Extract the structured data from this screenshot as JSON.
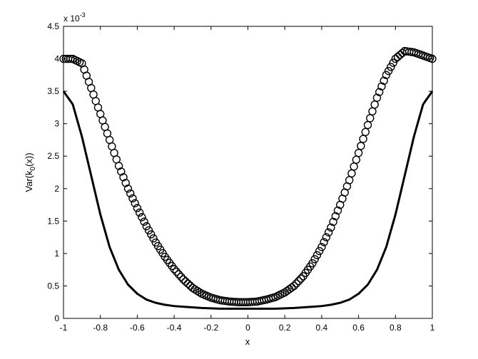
{
  "chart_data": {
    "type": "line",
    "title": "",
    "xlabel": "x",
    "ylabel": "Var(k_0(x))",
    "ylabel_main": "Var(k",
    "ylabel_sub": "0",
    "ylabel_tail": "(x))",
    "y_multiplier_label": "x 10",
    "y_multiplier_exponent": "-3",
    "xlim": [
      -1,
      1
    ],
    "ylim": [
      0,
      4.5
    ],
    "x_ticks": [
      "-1",
      "-0.8",
      "-0.6",
      "-0.4",
      "-0.2",
      "0",
      "0.2",
      "0.4",
      "0.6",
      "0.8",
      "1"
    ],
    "y_ticks": [
      "0",
      "0.5",
      "1",
      "1.5",
      "2",
      "2.5",
      "3",
      "3.5",
      "4",
      "4.5"
    ],
    "grid": false,
    "series": [
      {
        "marker": "circle",
        "color": "#000000",
        "x": [
          -1.0,
          -0.95,
          -0.9,
          -0.85,
          -0.8,
          -0.75,
          -0.7,
          -0.65,
          -0.6,
          -0.55,
          -0.5,
          -0.45,
          -0.4,
          -0.35,
          -0.3,
          -0.25,
          -0.2,
          -0.15,
          -0.1,
          -0.05,
          0.0,
          0.05,
          0.1,
          0.15,
          0.2,
          0.25,
          0.3,
          0.35,
          0.4,
          0.45,
          0.5,
          0.55,
          0.6,
          0.65,
          0.7,
          0.75,
          0.8,
          0.85,
          0.9,
          0.95,
          1.0
        ],
        "y": [
          4.0,
          4.0,
          3.93,
          3.55,
          3.15,
          2.75,
          2.35,
          2.0,
          1.7,
          1.42,
          1.17,
          0.95,
          0.76,
          0.6,
          0.47,
          0.38,
          0.32,
          0.28,
          0.26,
          0.25,
          0.25,
          0.26,
          0.29,
          0.33,
          0.4,
          0.5,
          0.65,
          0.85,
          1.1,
          1.4,
          1.75,
          2.13,
          2.55,
          2.98,
          3.4,
          3.75,
          4.0,
          4.12,
          4.1,
          4.05,
          4.0
        ]
      },
      {
        "marker": "none",
        "color": "#000000",
        "x": [
          -1.0,
          -0.95,
          -0.9,
          -0.85,
          -0.8,
          -0.75,
          -0.7,
          -0.65,
          -0.6,
          -0.55,
          -0.5,
          -0.45,
          -0.4,
          -0.35,
          -0.3,
          -0.25,
          -0.2,
          -0.15,
          -0.1,
          -0.05,
          0.0,
          0.05,
          0.1,
          0.15,
          0.2,
          0.25,
          0.3,
          0.35,
          0.4,
          0.45,
          0.5,
          0.55,
          0.6,
          0.65,
          0.7,
          0.75,
          0.8,
          0.85,
          0.9,
          0.95,
          1.0
        ],
        "y": [
          3.5,
          3.3,
          2.8,
          2.2,
          1.6,
          1.1,
          0.75,
          0.52,
          0.38,
          0.29,
          0.24,
          0.21,
          0.19,
          0.18,
          0.17,
          0.16,
          0.155,
          0.15,
          0.15,
          0.15,
          0.15,
          0.15,
          0.15,
          0.15,
          0.155,
          0.16,
          0.17,
          0.18,
          0.19,
          0.21,
          0.24,
          0.29,
          0.38,
          0.52,
          0.75,
          1.1,
          1.6,
          2.2,
          2.8,
          3.3,
          3.5
        ]
      }
    ]
  }
}
